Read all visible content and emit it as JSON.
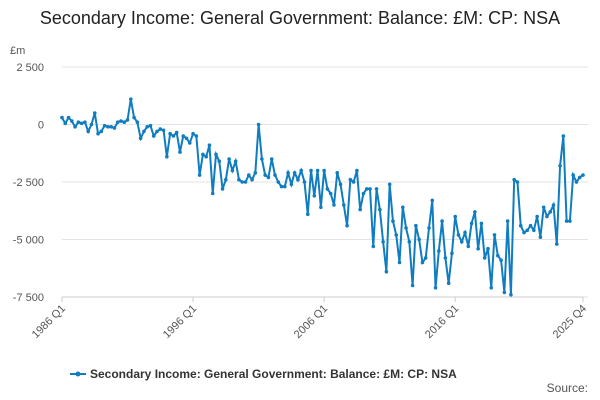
{
  "chart_data": {
    "type": "line",
    "title": "Secondary Income: General Government: Balance: £M: CP: NSA",
    "y_label": "£m",
    "source": "Source:",
    "categories": [
      "1986 Q1",
      null,
      null,
      null,
      null,
      null,
      null,
      null,
      null,
      null,
      null,
      null,
      null,
      null,
      null,
      null,
      null,
      null,
      null,
      null,
      null,
      null,
      null,
      null,
      null,
      null,
      null,
      null,
      null,
      null,
      null,
      null,
      null,
      null,
      null,
      null,
      null,
      null,
      null,
      null,
      "1996 Q1",
      null,
      null,
      null,
      null,
      null,
      null,
      null,
      null,
      null,
      null,
      null,
      null,
      null,
      null,
      null,
      null,
      null,
      null,
      null,
      null,
      null,
      null,
      null,
      null,
      null,
      null,
      null,
      null,
      null,
      null,
      null,
      null,
      null,
      null,
      null,
      null,
      null,
      null,
      null,
      "2006 Q1",
      null,
      null,
      null,
      null,
      null,
      null,
      null,
      null,
      null,
      null,
      null,
      null,
      null,
      null,
      null,
      null,
      null,
      null,
      null,
      null,
      null,
      null,
      null,
      null,
      null,
      null,
      null,
      null,
      null,
      null,
      null,
      null,
      null,
      null,
      null,
      null,
      null,
      null,
      null,
      "2016 Q1",
      null,
      null,
      null,
      null,
      null,
      null,
      null,
      null,
      null,
      null,
      null,
      null,
      null,
      null,
      null,
      null,
      null,
      null,
      null,
      null,
      null,
      null,
      null,
      null,
      null,
      null,
      null,
      null,
      null,
      null,
      null,
      null,
      null,
      null,
      null,
      null,
      null,
      null,
      "2025 Q4"
    ],
    "series": [
      {
        "name": "Secondary Income: General Government: Balance: £M: CP: NSA",
        "color": "#0f7dbf",
        "values": [
          300,
          50,
          300,
          150,
          -100,
          100,
          50,
          100,
          -300,
          0,
          500,
          -400,
          -300,
          -50,
          -100,
          -100,
          -150,
          100,
          150,
          100,
          200,
          1100,
          300,
          100,
          -600,
          -300,
          -100,
          -50,
          -500,
          -300,
          -200,
          -250,
          -1400,
          -400,
          -500,
          -350,
          -1200,
          -500,
          -600,
          -800,
          -400,
          -500,
          -2200,
          -1300,
          -1400,
          -900,
          -3000,
          -1300,
          -1600,
          -2800,
          -2400,
          -1500,
          -2000,
          -1600,
          -2400,
          -2500,
          -2500,
          -2200,
          -2400,
          -2100,
          0,
          -1500,
          -2200,
          -2300,
          -1500,
          -2200,
          -2500,
          -2700,
          -2700,
          -2100,
          -2600,
          -2100,
          -2400,
          -2000,
          -2500,
          -3900,
          -2000,
          -3100,
          -2000,
          -3600,
          -2000,
          -2800,
          -3000,
          -3500,
          -2100,
          -2600,
          -3500,
          -4400,
          -2400,
          -2500,
          -2000,
          -3700,
          -3000,
          -2800,
          -2800,
          -5300,
          -2800,
          -3700,
          -5100,
          -6400,
          -2600,
          -4200,
          -4800,
          -6000,
          -3600,
          -4500,
          -5100,
          -7000,
          -4400,
          -5000,
          -6000,
          -5800,
          -4500,
          -3300,
          -7100,
          -5500,
          -4200,
          -5800,
          -6900,
          -5600,
          -4000,
          -4800,
          -5100,
          -4700,
          -5300,
          -4300,
          -3800,
          -5400,
          -4300,
          -5800,
          -5400,
          -7100,
          -4800,
          -5700,
          -5900,
          -7300,
          -4200,
          -7400,
          -2400,
          -2500,
          -4400,
          -4700,
          -4600,
          -4400,
          -4600,
          -4000,
          -4900,
          -3600,
          -4000,
          -3800,
          -3500,
          -5200,
          -1800,
          -500,
          -4200,
          -4200,
          -2200,
          -2500,
          -2300,
          -2200
        ]
      }
    ],
    "ylim": [
      -7500,
      2500
    ],
    "yticks": [
      {
        "value": -7500,
        "label": "-7 500"
      },
      {
        "value": -5000,
        "label": "-5 000"
      },
      {
        "value": -2500,
        "label": "-2 500"
      },
      0,
      {
        "value": 2500,
        "label": "2 500"
      }
    ],
    "grid": true,
    "legend": "bottom"
  }
}
